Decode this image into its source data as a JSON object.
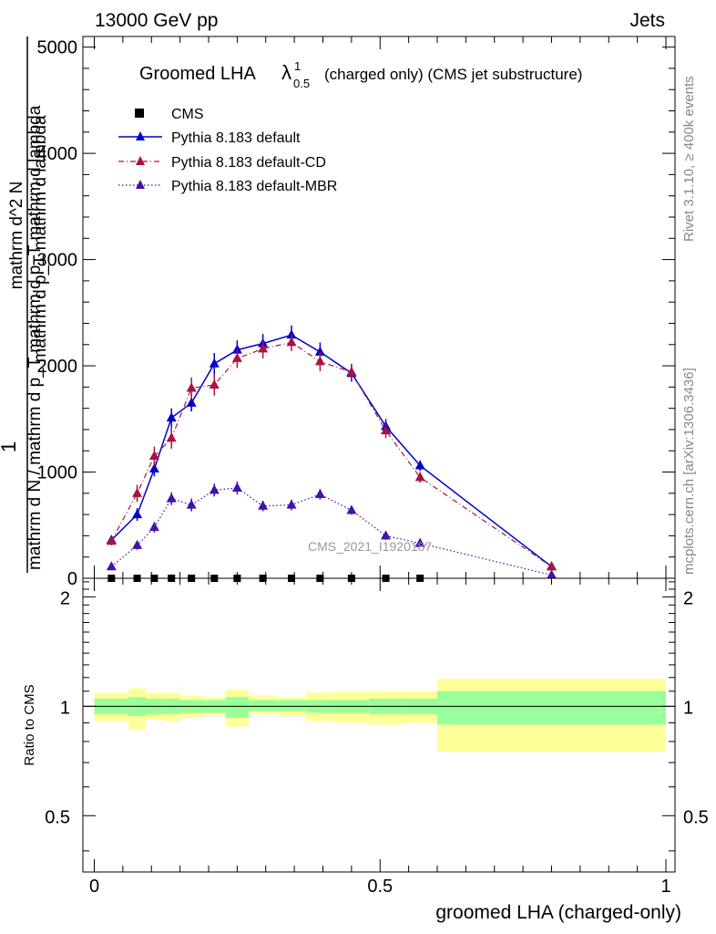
{
  "header": {
    "left": "13000 GeV pp",
    "right": "Jets"
  },
  "side": {
    "rivet": "Rivet 3.1.10, ≥ 400k events",
    "mcplots": "mcplots.cern.ch [arXiv:1306.3436]"
  },
  "watermark": "CMS_2021_I1920187",
  "chart_data": [
    {
      "type": "line",
      "title": "Groomed LHA",
      "title_symbol": "λ",
      "title_sup": "1",
      "title_sub": "0.5",
      "title_suffix": "(charged only) (CMS jet substructure)",
      "ylabel_numer": "1",
      "ylabel_denom": "mathrm d N / mathrm d p_T mathrm d p_T mathrm d lambda",
      "ylabel_numer_detail": "mathrm d^2 N",
      "ylabel_denom_detail": "mathrm d p_T mathrm d lambda",
      "ylim": [
        0,
        5100
      ],
      "yticks": [
        0,
        1000,
        2000,
        3000,
        4000,
        5000
      ],
      "ytick_labels": [
        "0",
        "1000",
        "2000",
        "3000",
        "4000",
        "5000"
      ],
      "xlim": [
        0,
        1
      ],
      "legend": [
        {
          "key": "cms",
          "label": "CMS"
        },
        {
          "key": "def",
          "label": "Pythia 8.183 default"
        },
        {
          "key": "cd",
          "label": "Pythia 8.183 default-CD"
        },
        {
          "key": "mbr",
          "label": "Pythia 8.183 default-MBR"
        }
      ],
      "colors": {
        "cms": "#000000",
        "def": "#0000cc",
        "cd": "#aa1144",
        "mbr": "#4411aa"
      },
      "cms_x": [
        0.03,
        0.075,
        0.105,
        0.135,
        0.17,
        0.21,
        0.25,
        0.295,
        0.345,
        0.395,
        0.45,
        0.51,
        0.57
      ],
      "cms_y": [
        0,
        0,
        0,
        0,
        0,
        0,
        0,
        0,
        0,
        0,
        0,
        0,
        0
      ],
      "series": [
        {
          "key": "def",
          "name": "Pythia 8.183 default",
          "x": [
            0.03,
            0.075,
            0.105,
            0.135,
            0.17,
            0.21,
            0.25,
            0.295,
            0.345,
            0.395,
            0.45,
            0.51,
            0.57,
            0.8
          ],
          "y": [
            360,
            600,
            1030,
            1510,
            1650,
            2020,
            2150,
            2210,
            2290,
            2130,
            1930,
            1430,
            1060,
            110
          ],
          "err": [
            40,
            60,
            70,
            90,
            80,
            100,
            90,
            90,
            90,
            90,
            80,
            70,
            50,
            30
          ]
        },
        {
          "key": "cd",
          "name": "Pythia 8.183 default-CD",
          "x": [
            0.03,
            0.075,
            0.105,
            0.135,
            0.17,
            0.21,
            0.25,
            0.295,
            0.345,
            0.395,
            0.45,
            0.51,
            0.57,
            0.8
          ],
          "y": [
            350,
            800,
            1150,
            1320,
            1790,
            1820,
            2070,
            2160,
            2220,
            2040,
            1940,
            1390,
            950,
            110
          ],
          "err": [
            40,
            80,
            90,
            100,
            100,
            100,
            90,
            90,
            80,
            90,
            80,
            70,
            50,
            30
          ]
        },
        {
          "key": "mbr",
          "name": "Pythia 8.183 default-MBR",
          "x": [
            0.03,
            0.075,
            0.105,
            0.135,
            0.17,
            0.21,
            0.25,
            0.295,
            0.345,
            0.395,
            0.45,
            0.51,
            0.57,
            0.8
          ],
          "y": [
            110,
            310,
            480,
            750,
            690,
            830,
            850,
            680,
            690,
            790,
            640,
            400,
            330,
            30
          ],
          "err": [
            20,
            40,
            50,
            60,
            60,
            60,
            60,
            50,
            50,
            50,
            40,
            40,
            30,
            10
          ]
        }
      ]
    },
    {
      "type": "area",
      "ylabel": "Ratio to CMS",
      "xlabel": "groomed LHA (charged-only)",
      "ylim": [
        0.35,
        2.25
      ],
      "yticks": [
        0.5,
        1,
        2
      ],
      "ytick_labels": [
        "0.5",
        "1",
        "2"
      ],
      "xlim": [
        0,
        1
      ],
      "xticks": [
        0,
        0.5,
        1
      ],
      "xtick_labels": [
        "0",
        "0.5",
        "1"
      ],
      "bins": [
        0,
        0.06,
        0.09,
        0.12,
        0.15,
        0.19,
        0.23,
        0.27,
        0.32,
        0.37,
        0.42,
        0.48,
        0.54,
        0.6,
        1.0
      ],
      "green_lo": [
        0.95,
        0.94,
        0.95,
        0.95,
        0.96,
        0.96,
        0.93,
        0.97,
        0.97,
        0.96,
        0.96,
        0.95,
        0.95,
        0.89
      ],
      "green_hi": [
        1.05,
        1.06,
        1.05,
        1.05,
        1.04,
        1.04,
        1.06,
        1.04,
        1.04,
        1.04,
        1.04,
        1.05,
        1.05,
        1.1
      ],
      "yellow_lo": [
        0.91,
        0.86,
        0.92,
        0.91,
        0.93,
        0.94,
        0.88,
        0.95,
        0.94,
        0.91,
        0.9,
        0.89,
        0.9,
        0.75
      ],
      "yellow_hi": [
        1.09,
        1.12,
        1.09,
        1.09,
        1.07,
        1.06,
        1.11,
        1.07,
        1.06,
        1.09,
        1.1,
        1.1,
        1.1,
        1.19
      ],
      "green_color": "#99ff99",
      "yellow_color": "#ffff99"
    }
  ]
}
